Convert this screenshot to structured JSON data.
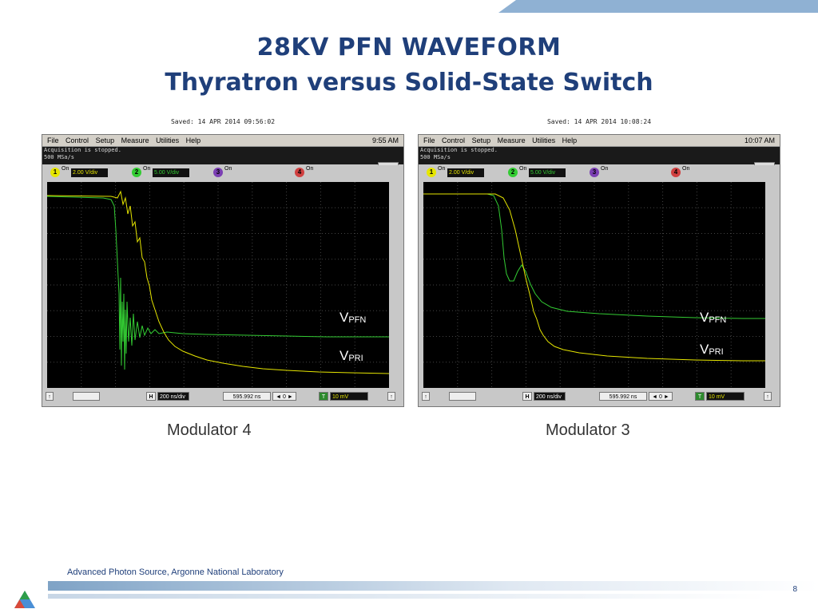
{
  "slide": {
    "title_line1": "28KV PFN WAVEFORM",
    "title_line2": "Thyratron versus Solid-State Switch",
    "footer": "Advanced Photon Source, Argonne National Laboratory",
    "page_number": "8"
  },
  "scopes": [
    {
      "saved": "Saved:  14 APR 2014  09:56:02",
      "menu": [
        "File",
        "Control",
        "Setup",
        "Measure",
        "Utilities",
        "Help"
      ],
      "time": "9:55 AM",
      "acq_line1": "Acquisition is stopped.",
      "acq_line2": "500 MSa/s",
      "channels": [
        {
          "num": "1",
          "on": "On",
          "scale": "2.00 V/div"
        },
        {
          "num": "2",
          "on": "On",
          "scale": "5.00 V/div"
        },
        {
          "num": "3",
          "on": "On",
          "scale": ""
        },
        {
          "num": "4",
          "on": "On",
          "scale": ""
        }
      ],
      "timebase": "200 ns/div",
      "delay": "595.992 ns",
      "trigger_level": "10 mV",
      "trace_labels": {
        "pfn": "V",
        "pfn_sub": "PFN",
        "pri": "V",
        "pri_sub": "PRI"
      },
      "caption": "Modulator 4"
    },
    {
      "saved": "Saved:  14 APR 2014  10:08:24",
      "menu": [
        "File",
        "Control",
        "Setup",
        "Measure",
        "Utilities",
        "Help"
      ],
      "time": "10:07 AM",
      "acq_line1": "Acquisition is stopped.",
      "acq_line2": "500 MSa/s",
      "channels": [
        {
          "num": "1",
          "on": "On",
          "scale": "2.00 V/div"
        },
        {
          "num": "2",
          "on": "On",
          "scale": "5.00 V/div"
        },
        {
          "num": "3",
          "on": "On",
          "scale": ""
        },
        {
          "num": "4",
          "on": "On",
          "scale": ""
        }
      ],
      "timebase": "200 ns/div",
      "delay": "595.992 ns",
      "trigger_level": "10 mV",
      "trace_labels": {
        "pfn": "V",
        "pfn_sub": "PFN",
        "pri": "V",
        "pri_sub": "PRI"
      },
      "caption": "Modulator 3"
    }
  ],
  "colors": {
    "title": "#1f3f7a",
    "ch1_trace": "#e6e600",
    "ch2_trace": "#33cc33",
    "grid": "#444444"
  }
}
